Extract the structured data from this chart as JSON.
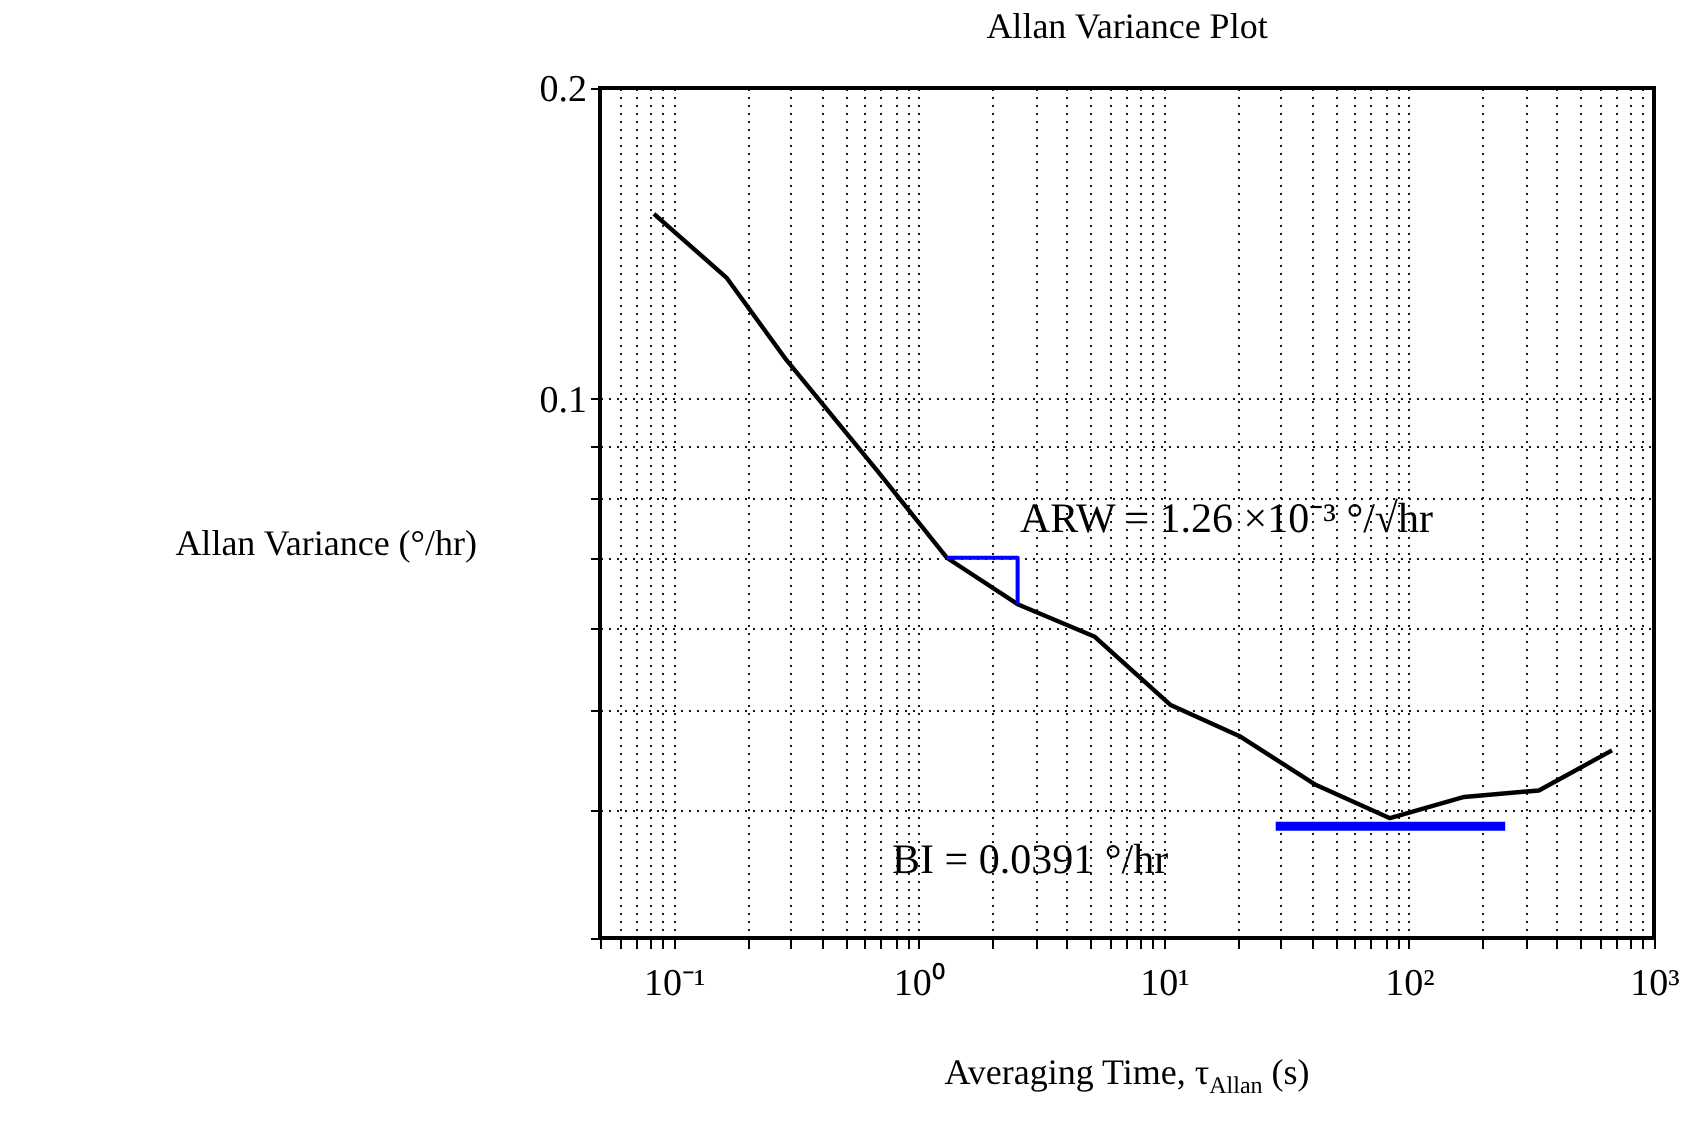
{
  "chart_data": {
    "type": "line",
    "title": "Allan Variance Plot",
    "xlabel": "Averaging Time, τ$_{Allan}$ (s)",
    "ylabel": "Allan Variance (°/hr)",
    "log": "xy",
    "grid": true,
    "marker": "none",
    "line_style": "solid",
    "xlim": [
      0.05,
      1000
    ],
    "ylim": [
      0.03,
      0.2
    ],
    "xticks": [
      {
        "value": 0.05,
        "label": null
      },
      {
        "value": 0.06,
        "label": null
      },
      {
        "value": 0.07,
        "label": null
      },
      {
        "value": 0.08,
        "label": null
      },
      {
        "value": 0.09,
        "label": null
      },
      {
        "value": 0.1,
        "label": "10⁻¹"
      },
      {
        "value": 0.2,
        "label": null
      },
      {
        "value": 0.3,
        "label": null
      },
      {
        "value": 0.4,
        "label": null
      },
      {
        "value": 0.5,
        "label": null
      },
      {
        "value": 0.6,
        "label": null
      },
      {
        "value": 0.7,
        "label": null
      },
      {
        "value": 0.8,
        "label": null
      },
      {
        "value": 0.9,
        "label": null
      },
      {
        "value": 1,
        "label": "10⁰"
      },
      {
        "value": 2,
        "label": null
      },
      {
        "value": 3,
        "label": null
      },
      {
        "value": 4,
        "label": null
      },
      {
        "value": 5,
        "label": null
      },
      {
        "value": 6,
        "label": null
      },
      {
        "value": 7,
        "label": null
      },
      {
        "value": 8,
        "label": null
      },
      {
        "value": 9,
        "label": null
      },
      {
        "value": 10,
        "label": "10¹"
      },
      {
        "value": 20,
        "label": null
      },
      {
        "value": 30,
        "label": null
      },
      {
        "value": 40,
        "label": null
      },
      {
        "value": 50,
        "label": null
      },
      {
        "value": 60,
        "label": null
      },
      {
        "value": 70,
        "label": null
      },
      {
        "value": 80,
        "label": null
      },
      {
        "value": 90,
        "label": null
      },
      {
        "value": 100,
        "label": "10²"
      },
      {
        "value": 200,
        "label": null
      },
      {
        "value": 300,
        "label": null
      },
      {
        "value": 400,
        "label": null
      },
      {
        "value": 500,
        "label": null
      },
      {
        "value": 600,
        "label": null
      },
      {
        "value": 700,
        "label": null
      },
      {
        "value": 800,
        "label": null
      },
      {
        "value": 900,
        "label": null
      },
      {
        "value": 1000,
        "label": "10³"
      }
    ],
    "yticks": [
      {
        "value": 0.03,
        "label": null
      },
      {
        "value": 0.04,
        "label": null
      },
      {
        "value": 0.05,
        "label": null
      },
      {
        "value": 0.06,
        "label": null
      },
      {
        "value": 0.07,
        "label": null
      },
      {
        "value": 0.08,
        "label": null
      },
      {
        "value": 0.09,
        "label": null
      },
      0.1,
      0.2
    ],
    "series": [
      {
        "color": "#000000",
        "x": [
          0.083,
          0.164,
          0.288,
          0.68,
          1.3,
          2.53,
          5.2,
          10.6,
          20.6,
          41.8,
          83.7,
          168,
          339,
          674
        ],
        "values": [
          0.151,
          0.131,
          0.109,
          0.085,
          0.0701,
          0.0632,
          0.0588,
          0.0505,
          0.047,
          0.0422,
          0.0392,
          0.0411,
          0.0417,
          0.0456
        ]
      },
      {
        "color": "#0000ff",
        "x": [
          1.3,
          2.53,
          2.53
        ],
        "values": [
          0.0701,
          0.0701,
          0.0632
        ]
      },
      {
        "color": "#0000ff",
        "x": [
          28.6,
          247
        ],
        "values": [
          0.0385,
          0.0385
        ]
      }
    ],
    "annotations": [
      "ARW = 1.26 ×10⁻³ °/√hr",
      "BI = 0.0391 °/hr"
    ]
  }
}
